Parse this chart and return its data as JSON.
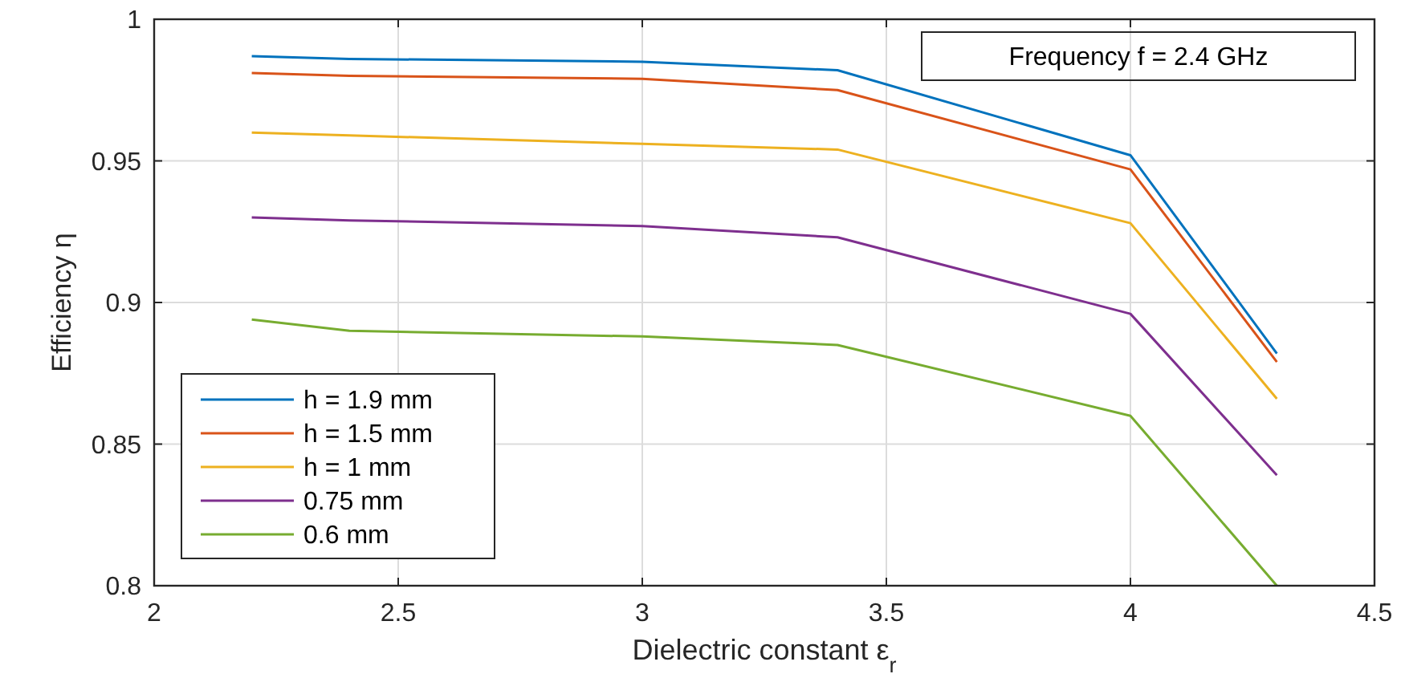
{
  "chart_data": {
    "type": "line",
    "xlabel": "Dielectric constant  ε$_{r}$",
    "ylabel": "Efficiency  η",
    "annotations": [
      "Frequency f = 2.4 GHz"
    ],
    "x": [
      2.2,
      2.4,
      3,
      3.4,
      4,
      4.3
    ],
    "series": [
      {
        "name": "h = 1.9 mm",
        "color": "#0072bd",
        "values": [
          0.987,
          0.986,
          0.985,
          0.982,
          0.952,
          0.882
        ]
      },
      {
        "name": "h = 1.5 mm",
        "color": "#d95319",
        "values": [
          0.981,
          0.98,
          0.979,
          0.975,
          0.947,
          0.879
        ]
      },
      {
        "name": "h = 1 mm",
        "color": "#edb120",
        "values": [
          0.96,
          0.959,
          0.956,
          0.954,
          0.928,
          0.866
        ]
      },
      {
        "name": "0.75 mm",
        "color": "#7e2f8e",
        "values": [
          0.93,
          0.929,
          0.927,
          0.923,
          0.896,
          0.839
        ]
      },
      {
        "name": "0.6 mm",
        "color": "#77ac30",
        "values": [
          0.894,
          0.89,
          0.888,
          0.885,
          0.86,
          0.8
        ]
      }
    ],
    "xlim": [
      2,
      4.5
    ],
    "xticks": [
      2,
      2.5,
      3,
      3.5,
      4,
      4.5
    ],
    "ylim": [
      0.8,
      1
    ],
    "yticks": [
      0.8,
      0.85,
      0.9,
      0.95,
      1
    ],
    "grid": true,
    "legend": "bottom left",
    "line_style": "solid",
    "marker": "none"
  }
}
